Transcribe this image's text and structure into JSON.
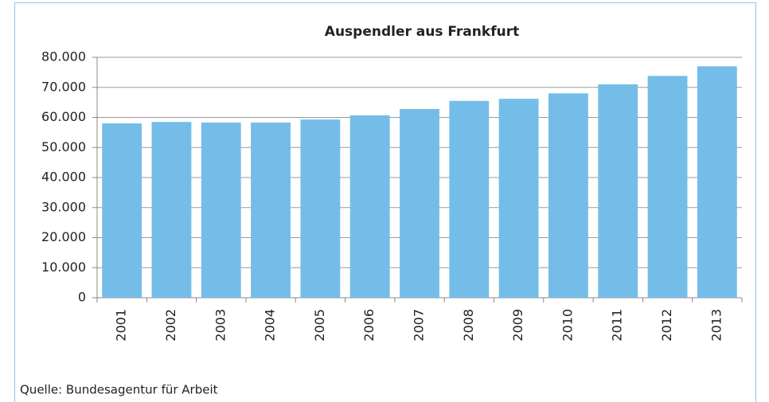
{
  "chart_data": {
    "type": "bar",
    "title": "Auspendler aus Frankfurt",
    "categories": [
      "2001",
      "2002",
      "2003",
      "2004",
      "2005",
      "2006",
      "2007",
      "2008",
      "2009",
      "2010",
      "2011",
      "2012",
      "2013"
    ],
    "values": [
      58000,
      58500,
      58300,
      58300,
      59300,
      60700,
      62800,
      65500,
      66200,
      68000,
      71000,
      73800,
      77000
    ],
    "color": "#74bde8",
    "ylim": [
      0,
      80000
    ],
    "yticks": [
      0,
      {
        "value": 10000,
        "label": "10.000"
      },
      {
        "value": 20000,
        "label": "20.000"
      },
      {
        "value": 30000,
        "label": "30.000"
      },
      {
        "value": 40000,
        "label": "40.000"
      },
      {
        "value": 50000,
        "label": "50.000"
      },
      {
        "value": 60000,
        "label": "60.000"
      },
      {
        "value": 70000,
        "label": "70.000"
      },
      {
        "value": 80000,
        "label": "80.000"
      }
    ],
    "grid": true,
    "source": "Quelle: Bundesagentur für Arbeit"
  }
}
